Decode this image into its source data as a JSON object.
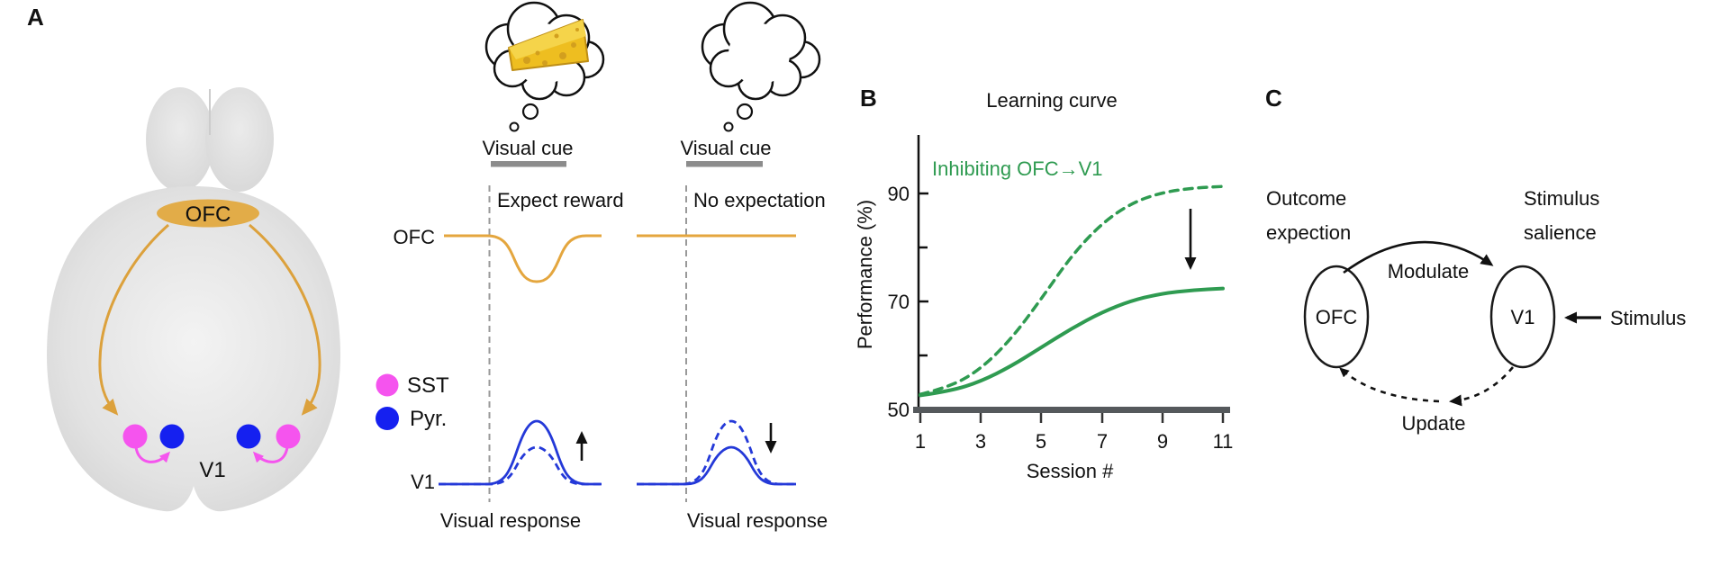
{
  "figure": {
    "panel_a": {
      "label": "A",
      "brain": {
        "ofc": "OFC",
        "v1": "V1"
      },
      "legend": {
        "sst": "SST",
        "pyr": "Pyr."
      },
      "columns": [
        {
          "thought": "cheese",
          "cue_label": "Visual cue",
          "condition": "Expect reward",
          "response_label": "Visual response"
        },
        {
          "thought": "empty",
          "cue_label": "Visual cue",
          "condition": "No expectation",
          "response_label": "Visual response"
        }
      ],
      "trace_rows": {
        "ofc": "OFC",
        "v1": "V1"
      }
    },
    "panel_b": {
      "label": "B",
      "title": "Learning curve",
      "annotation": "Inhibiting OFC→V1",
      "ylabel": "Performance (%)",
      "xlabel": "Session #"
    },
    "panel_c": {
      "label": "C",
      "left_caption_line1": "Outcome",
      "left_caption_line2": "expection",
      "right_caption_line1": "Stimulus",
      "right_caption_line2": "salience",
      "node_ofc": "OFC",
      "node_v1": "V1",
      "modulate": "Modulate",
      "update": "Update",
      "stimulus": "Stimulus"
    }
  },
  "colors": {
    "gold_line": "#DCA13C",
    "gold_fill": "#E2AC48",
    "magenta": "#F554EE",
    "blue_dot": "#1520F0",
    "blue_trace": "#2439D8",
    "green": "#2F9B51",
    "brain_gray": "#DCDCDC",
    "cue_bar_gray": "#8C8C8C",
    "axis_gray": "#55595C"
  },
  "chart_data": {
    "type": "line",
    "title": "Learning curve",
    "annotation": "Inhibiting OFC→V1",
    "xlabel": "Session #",
    "ylabel": "Performance (%)",
    "xlim": [
      1,
      11
    ],
    "ylim": [
      50,
      95
    ],
    "xticks": [
      "1",
      "3",
      "5",
      "7",
      "9",
      "11"
    ],
    "yticks": [
      "50",
      "70",
      "90"
    ],
    "grid": false,
    "x": [
      1,
      2,
      3,
      4,
      5,
      6,
      7,
      8,
      9,
      10,
      11
    ],
    "series": [
      {
        "name": "dashed (control)",
        "style": "dashed",
        "color": "#2F9B51",
        "values": [
          52.8,
          54.2,
          57.5,
          63.0,
          70.5,
          78.5,
          84.5,
          88.3,
          90.2,
          91.0,
          91.3
        ]
      },
      {
        "name": "solid (inhibiting OFC→V1)",
        "style": "solid",
        "color": "#2F9B51",
        "values": [
          52.6,
          53.4,
          55.2,
          58.0,
          61.5,
          65.0,
          68.0,
          70.2,
          71.5,
          72.1,
          72.4
        ]
      }
    ],
    "annotations": [
      {
        "type": "arrow",
        "direction": "down",
        "x": 10,
        "from_y": 87,
        "to_y": 76
      }
    ]
  }
}
